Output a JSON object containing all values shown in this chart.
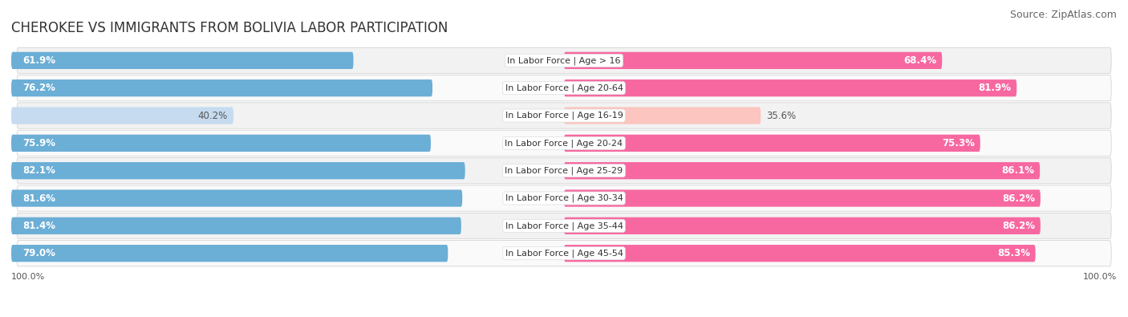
{
  "title": "Cherokee vs Immigrants from Bolivia Labor Participation",
  "source": "Source: ZipAtlas.com",
  "categories": [
    "In Labor Force | Age > 16",
    "In Labor Force | Age 20-64",
    "In Labor Force | Age 16-19",
    "In Labor Force | Age 20-24",
    "In Labor Force | Age 25-29",
    "In Labor Force | Age 30-34",
    "In Labor Force | Age 35-44",
    "In Labor Force | Age 45-54"
  ],
  "cherokee_values": [
    61.9,
    76.2,
    40.2,
    75.9,
    82.1,
    81.6,
    81.4,
    79.0
  ],
  "bolivia_values": [
    68.4,
    81.9,
    35.6,
    75.3,
    86.1,
    86.2,
    86.2,
    85.3
  ],
  "cherokee_color": "#6baed6",
  "cherokee_color_light": "#c6dbef",
  "bolivia_color": "#f768a1",
  "bolivia_color_light": "#fcc5c0",
  "background_color": "#ffffff",
  "row_bg_color": "#f2f2f2",
  "row_alt_color": "#fafafa",
  "title_fontsize": 12,
  "source_fontsize": 9,
  "bar_label_fontsize": 8.5,
  "category_fontsize": 8,
  "legend_fontsize": 9,
  "axis_label_fontsize": 8
}
